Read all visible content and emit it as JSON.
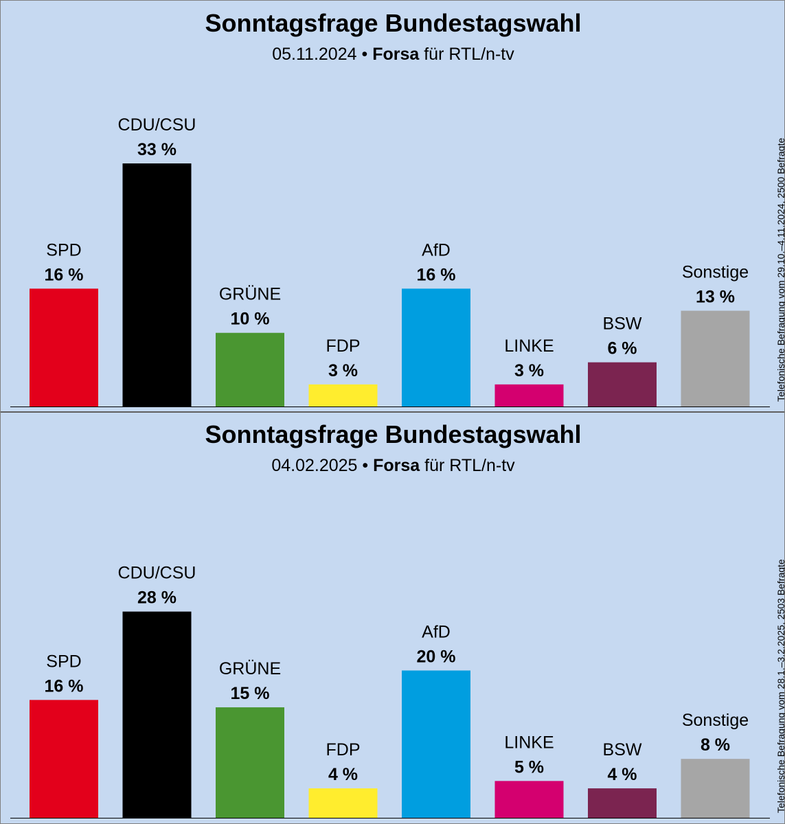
{
  "chart_data": [
    {
      "type": "bar",
      "title": "Sonntagsfrage Bundestagswahl",
      "date": "05.11.2024",
      "separator": "•",
      "institute": "Forsa",
      "client": "für RTL/n-tv",
      "side_note": "Telefonische Befragung vom 29.10.–4.11.2024, 2500 Befragte",
      "categories": [
        "SPD",
        "CDU/CSU",
        "GRÜNE",
        "FDP",
        "AfD",
        "LINKE",
        "BSW",
        "Sonstige"
      ],
      "values": [
        16,
        33,
        10,
        3,
        16,
        3,
        6,
        13
      ],
      "value_labels": [
        "16 %",
        "33 %",
        "10 %",
        "3 %",
        "16 %",
        "3 %",
        "6 %",
        "13 %"
      ],
      "colors": [
        "#e3001b",
        "#000000",
        "#4a9631",
        "#ffed2e",
        "#009ee0",
        "#d4006f",
        "#7b2450",
        "#a6a6a6"
      ],
      "ylim": [
        0,
        33
      ],
      "grid": false,
      "legend": "none"
    },
    {
      "type": "bar",
      "title": "Sonntagsfrage Bundestagswahl",
      "date": "04.02.2025",
      "separator": "•",
      "institute": "Forsa",
      "client": "für RTL/n-tv",
      "side_note": "Telefonische Befragung vom 28.1.–3.2.2025, 2503 Befragte",
      "categories": [
        "SPD",
        "CDU/CSU",
        "GRÜNE",
        "FDP",
        "AfD",
        "LINKE",
        "BSW",
        "Sonstige"
      ],
      "values": [
        16,
        28,
        15,
        4,
        20,
        5,
        4,
        8
      ],
      "value_labels": [
        "16 %",
        "28 %",
        "15 %",
        "4 %",
        "20 %",
        "5 %",
        "4 %",
        "8 %"
      ],
      "colors": [
        "#e3001b",
        "#000000",
        "#4a9631",
        "#ffed2e",
        "#009ee0",
        "#d4006f",
        "#7b2450",
        "#a6a6a6"
      ],
      "ylim": [
        0,
        33
      ],
      "grid": false,
      "legend": "none"
    }
  ]
}
